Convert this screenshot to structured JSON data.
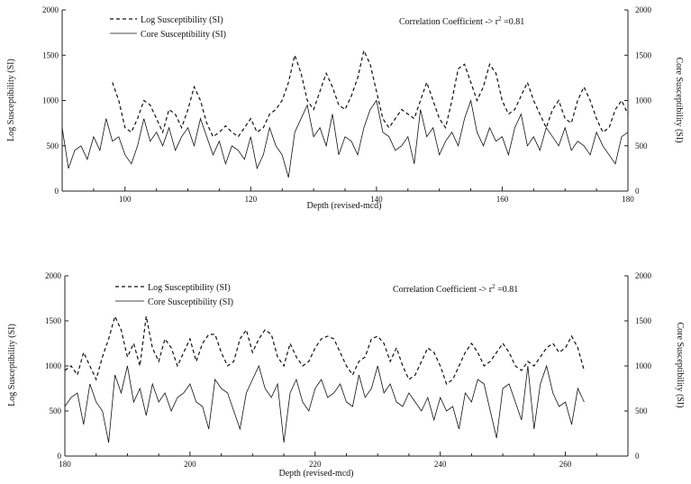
{
  "chart_data": [
    {
      "type": "line",
      "title": "",
      "xlabel": "Depth (revised-mcd)",
      "ylabel_left": "Log Susceptibility (SI)",
      "ylabel_right": "Core Susceptibility (SI)",
      "annotation": "Correlation Coefficient -> r",
      "annotation_sup": "2",
      "annotation_value": " =0.81",
      "xlim": [
        90,
        180
      ],
      "ylim": [
        0,
        2000
      ],
      "x_ticks": [
        "100",
        "120",
        "140",
        "160",
        "180"
      ],
      "x_tick_values": [
        100,
        120,
        140,
        160,
        180
      ],
      "y_ticks_left": [
        "0",
        "500",
        "1000",
        "1500",
        "2000"
      ],
      "y_ticks_right": [
        "0",
        "500",
        "1000",
        "1500",
        "2000"
      ],
      "y_tick_values": [
        0,
        500,
        1000,
        1500,
        2000
      ],
      "legend": [
        "Log Susceptibility (SI)",
        "Core Susceptibility (SI)"
      ],
      "legend_position": "top-left",
      "series": [
        {
          "name": "Log Susceptibility (SI)",
          "style": "dashed",
          "x": [
            98,
            99,
            100,
            101,
            102,
            103,
            104,
            105,
            106,
            107,
            108,
            109,
            110,
            111,
            112,
            113,
            114,
            115,
            116,
            117,
            118,
            119,
            120,
            121,
            122,
            123,
            124,
            125,
            126,
            127,
            128,
            129,
            130,
            131,
            132,
            133,
            134,
            135,
            136,
            137,
            138,
            139,
            140,
            141,
            142,
            143,
            144,
            145,
            146,
            147,
            148,
            149,
            150,
            151,
            152,
            153,
            154,
            155,
            156,
            157,
            158,
            159,
            160,
            161,
            162,
            163,
            164,
            165,
            166,
            167,
            168,
            169,
            170,
            171,
            172,
            173,
            174,
            175,
            176,
            177,
            178,
            179,
            180
          ],
          "y": [
            1200,
            1000,
            700,
            650,
            800,
            1000,
            950,
            800,
            650,
            900,
            850,
            700,
            900,
            1150,
            1000,
            750,
            600,
            650,
            720,
            650,
            600,
            700,
            800,
            650,
            700,
            850,
            900,
            1000,
            1200,
            1500,
            1300,
            1000,
            900,
            1100,
            1300,
            1150,
            950,
            900,
            1050,
            1250,
            1550,
            1400,
            1100,
            800,
            700,
            800,
            900,
            850,
            800,
            1000,
            1200,
            1000,
            800,
            700,
            1000,
            1350,
            1400,
            1200,
            1000,
            1150,
            1400,
            1300,
            1000,
            850,
            900,
            1050,
            1200,
            1000,
            850,
            700,
            900,
            1000,
            800,
            750,
            1000,
            1150,
            1000,
            800,
            650,
            700,
            900,
            1000,
            850
          ]
        },
        {
          "name": "Core Susceptibility (SI)",
          "style": "solid",
          "x": [
            90,
            91,
            92,
            93,
            94,
            95,
            96,
            97,
            98,
            99,
            100,
            101,
            102,
            103,
            104,
            105,
            106,
            107,
            108,
            109,
            110,
            111,
            112,
            113,
            114,
            115,
            116,
            117,
            118,
            119,
            120,
            121,
            122,
            123,
            124,
            125,
            126,
            127,
            128,
            129,
            130,
            131,
            132,
            133,
            134,
            135,
            136,
            137,
            138,
            139,
            140,
            141,
            142,
            143,
            144,
            145,
            146,
            147,
            148,
            149,
            150,
            151,
            152,
            153,
            154,
            155,
            156,
            157,
            158,
            159,
            160,
            161,
            162,
            163,
            164,
            165,
            166,
            167,
            168,
            169,
            170,
            171,
            172,
            173,
            174,
            175,
            176,
            177,
            178,
            179,
            180
          ],
          "y": [
            700,
            250,
            450,
            500,
            350,
            600,
            450,
            800,
            550,
            600,
            400,
            300,
            500,
            800,
            550,
            650,
            500,
            700,
            450,
            600,
            700,
            500,
            800,
            600,
            400,
            550,
            300,
            500,
            450,
            350,
            600,
            250,
            400,
            700,
            500,
            400,
            150,
            650,
            800,
            950,
            600,
            700,
            500,
            850,
            400,
            600,
            550,
            400,
            700,
            900,
            1000,
            650,
            600,
            450,
            500,
            600,
            300,
            900,
            600,
            700,
            400,
            550,
            650,
            500,
            800,
            1000,
            650,
            500,
            700,
            550,
            600,
            400,
            700,
            850,
            500,
            600,
            450,
            700,
            600,
            500,
            700,
            450,
            550,
            500,
            400,
            650,
            500,
            400,
            300,
            600,
            650
          ]
        }
      ]
    },
    {
      "type": "line",
      "title": "",
      "xlabel": "Depth (revised-mcd)",
      "ylabel_left": "Log Susceptibility (SI)",
      "ylabel_right": "Core Susceptibility (SI)",
      "annotation": "Correlation Coefficient -> r",
      "annotation_sup": "2",
      "annotation_value": " =0.81",
      "xlim": [
        180,
        270
      ],
      "ylim": [
        0,
        2000
      ],
      "x_ticks": [
        "180",
        "200",
        "220",
        "240",
        "260"
      ],
      "x_tick_values": [
        180,
        200,
        220,
        240,
        260
      ],
      "y_ticks_left": [
        "0",
        "500",
        "1000",
        "1500",
        "2000"
      ],
      "y_ticks_right": [
        "0",
        "500",
        "1000",
        "1500",
        "2000"
      ],
      "y_tick_values": [
        0,
        500,
        1000,
        1500,
        2000
      ],
      "legend": [
        "Log Susceptibility (SI)",
        "Core Susceptibility (SI)"
      ],
      "legend_position": "top-left",
      "series": [
        {
          "name": "Log Susceptibility (SI)",
          "style": "dashed",
          "x": [
            180,
            181,
            182,
            183,
            184,
            185,
            186,
            187,
            188,
            189,
            190,
            191,
            192,
            193,
            194,
            195,
            196,
            197,
            198,
            199,
            200,
            201,
            202,
            203,
            204,
            205,
            206,
            207,
            208,
            209,
            210,
            211,
            212,
            213,
            214,
            215,
            216,
            217,
            218,
            219,
            220,
            221,
            222,
            223,
            224,
            225,
            226,
            227,
            228,
            229,
            230,
            231,
            232,
            233,
            234,
            235,
            236,
            237,
            238,
            239,
            240,
            241,
            242,
            243,
            244,
            245,
            246,
            247,
            248,
            249,
            250,
            251,
            252,
            253,
            254,
            255,
            256,
            257,
            258,
            259,
            260,
            261,
            262,
            263
          ],
          "y": [
            950,
            1000,
            900,
            1150,
            1000,
            850,
            1100,
            1300,
            1550,
            1400,
            1100,
            1250,
            1000,
            1550,
            1200,
            1050,
            1300,
            1200,
            1000,
            1150,
            1300,
            1050,
            1250,
            1350,
            1350,
            1150,
            1000,
            1050,
            1300,
            1400,
            1150,
            1300,
            1400,
            1350,
            1100,
            1000,
            1250,
            1100,
            1000,
            1050,
            1200,
            1300,
            1330,
            1300,
            1150,
            1000,
            900,
            1050,
            1100,
            1300,
            1330,
            1250,
            1050,
            1200,
            1000,
            850,
            900,
            1050,
            1200,
            1150,
            1000,
            800,
            850,
            1000,
            1150,
            1250,
            1150,
            1000,
            1050,
            1150,
            1250,
            1150,
            1000,
            950,
            1050,
            1000,
            1100,
            1200,
            1250,
            1150,
            1200,
            1330,
            1200,
            950
          ]
        },
        {
          "name": "Core Susceptibility (SI)",
          "style": "solid",
          "x": [
            180,
            181,
            182,
            183,
            184,
            185,
            186,
            187,
            188,
            189,
            190,
            191,
            192,
            193,
            194,
            195,
            196,
            197,
            198,
            199,
            200,
            201,
            202,
            203,
            204,
            205,
            206,
            207,
            208,
            209,
            210,
            211,
            212,
            213,
            214,
            215,
            216,
            217,
            218,
            219,
            220,
            221,
            222,
            223,
            224,
            225,
            226,
            227,
            228,
            229,
            230,
            231,
            232,
            233,
            234,
            235,
            236,
            237,
            238,
            239,
            240,
            241,
            242,
            243,
            244,
            245,
            246,
            247,
            248,
            249,
            250,
            251,
            252,
            253,
            254,
            255,
            256,
            257,
            258,
            259,
            260,
            261,
            262,
            263
          ],
          "y": [
            550,
            650,
            700,
            350,
            800,
            600,
            500,
            150,
            900,
            700,
            1000,
            600,
            750,
            450,
            800,
            600,
            700,
            500,
            650,
            700,
            800,
            600,
            550,
            300,
            850,
            750,
            700,
            500,
            300,
            700,
            850,
            1000,
            750,
            650,
            800,
            150,
            700,
            850,
            600,
            500,
            750,
            850,
            650,
            700,
            800,
            600,
            550,
            900,
            650,
            750,
            1000,
            700,
            800,
            600,
            550,
            700,
            600,
            500,
            650,
            400,
            650,
            500,
            550,
            300,
            700,
            600,
            850,
            800,
            500,
            200,
            750,
            800,
            600,
            400,
            1000,
            300,
            800,
            1000,
            700,
            550,
            600,
            350,
            750,
            600
          ]
        }
      ]
    }
  ]
}
